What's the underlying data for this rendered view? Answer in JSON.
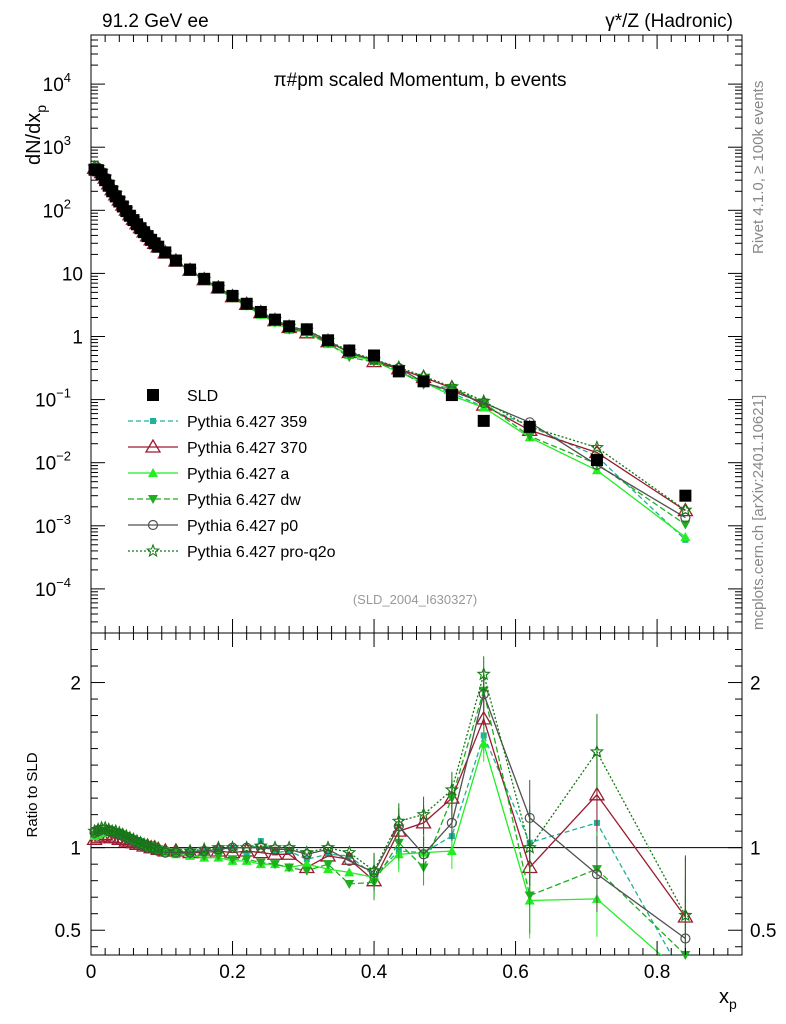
{
  "header": {
    "left_title": "91.2 GeV ee",
    "right_title": "γ*/Z (Hadronic)"
  },
  "side_labels": {
    "rivet": "Rivet 4.1.0, ≥ 100k events",
    "mcplots": "mcplots.cern.ch [arXiv:2401.10621]"
  },
  "chart_data": {
    "type": "line",
    "title": "π#pm scaled Momentum, b events",
    "watermark": "(SLD_2004_I630327)",
    "xlabel": "x_p",
    "ylabel": "dN/dx_p",
    "ratio_ylabel": "Ratio to SLD",
    "xlim": [
      0,
      0.92
    ],
    "ylim_log": [
      2e-05,
      60000
    ],
    "ratio_ylim": [
      0.35,
      2.3
    ],
    "y_ticks": [
      {
        "v": 10000,
        "base": "10",
        "exp": "4"
      },
      {
        "v": 1000,
        "base": "10",
        "exp": "3"
      },
      {
        "v": 100,
        "base": "10",
        "exp": "2"
      },
      {
        "v": 10,
        "base": "10",
        "exp": ""
      },
      {
        "v": 1,
        "base": "1",
        "exp": ""
      },
      {
        "v": 0.1,
        "base": "10",
        "exp": "−1"
      },
      {
        "v": 0.01,
        "base": "10",
        "exp": "−2"
      },
      {
        "v": 0.001,
        "base": "10",
        "exp": "−3"
      },
      {
        "v": 0.0001,
        "base": "10",
        "exp": "−4"
      }
    ],
    "x_ticks": [
      {
        "v": 0,
        "label": "0"
      },
      {
        "v": 0.2,
        "label": "0.2"
      },
      {
        "v": 0.4,
        "label": "0.4"
      },
      {
        "v": 0.6,
        "label": "0.6"
      },
      {
        "v": 0.8,
        "label": "0.8"
      }
    ],
    "ratio_ticks": [
      {
        "v": 0.5,
        "label": "0.5"
      },
      {
        "v": 1,
        "label": "1"
      },
      {
        "v": 2,
        "label": "2"
      }
    ],
    "x": [
      0.005,
      0.01,
      0.015,
      0.02,
      0.025,
      0.03,
      0.035,
      0.04,
      0.045,
      0.05,
      0.055,
      0.06,
      0.065,
      0.07,
      0.075,
      0.08,
      0.085,
      0.09,
      0.095,
      0.105,
      0.12,
      0.14,
      0.16,
      0.18,
      0.2,
      0.22,
      0.24,
      0.26,
      0.28,
      0.305,
      0.335,
      0.365,
      0.4,
      0.435,
      0.47,
      0.51,
      0.555,
      0.62,
      0.715,
      0.84
    ],
    "data_series": {
      "name": "SLD",
      "color": "#000000",
      "values": [
        440,
        430,
        370,
        300,
        245,
        200,
        166,
        138,
        115,
        97,
        82,
        70,
        60,
        52,
        45,
        39,
        34,
        30,
        26.5,
        21.5,
        16,
        11.5,
        8.2,
        6.0,
        4.4,
        3.3,
        2.45,
        1.85,
        1.45,
        1.3,
        0.87,
        0.6,
        0.5,
        0.28,
        0.195,
        0.118,
        0.046,
        0.037,
        0.011,
        0.003
      ]
    },
    "series": [
      {
        "name": "Pythia 6.427 359",
        "color": "#1eb296",
        "dash": "5,3",
        "marker": "square-filled",
        "ratio": [
          1.08,
          1.09,
          1.1,
          1.1,
          1.09,
          1.08,
          1.08,
          1.07,
          1.07,
          1.06,
          1.05,
          1.05,
          1.04,
          1.04,
          1.03,
          1.02,
          1.02,
          1.01,
          1.0,
          0.99,
          0.98,
          0.98,
          0.98,
          0.99,
          1.0,
          0.96,
          1.04,
          0.97,
          0.98,
          0.93,
          0.96,
          0.95,
          0.83,
          0.98,
          0.97,
          1.07,
          1.68,
          1.03,
          1.15,
          0.2
        ]
      },
      {
        "name": "Pythia 6.427 370",
        "color": "#9b1b30",
        "dash": "",
        "marker": "triangle-open",
        "ratio": [
          1.05,
          1.06,
          1.07,
          1.08,
          1.07,
          1.06,
          1.06,
          1.05,
          1.05,
          1.04,
          1.04,
          1.03,
          1.02,
          1.02,
          1.01,
          1.01,
          1.0,
          1.0,
          0.99,
          0.98,
          0.98,
          0.97,
          0.97,
          0.98,
          0.97,
          0.98,
          0.97,
          0.96,
          0.96,
          0.88,
          0.95,
          0.93,
          0.8,
          1.1,
          1.15,
          1.3,
          1.78,
          0.88,
          1.32,
          0.58
        ]
      },
      {
        "name": "Pythia 6.427 a",
        "color": "#22ee22",
        "dash": "",
        "marker": "triangle-filled",
        "ratio": [
          1.07,
          1.08,
          1.09,
          1.1,
          1.1,
          1.1,
          1.09,
          1.09,
          1.08,
          1.07,
          1.06,
          1.05,
          1.04,
          1.03,
          1.02,
          1.01,
          1.0,
          1.0,
          0.99,
          0.97,
          0.96,
          0.95,
          0.94,
          0.94,
          0.92,
          0.92,
          0.9,
          0.9,
          0.88,
          0.9,
          0.87,
          0.85,
          0.82,
          0.96,
          0.97,
          0.98,
          1.63,
          0.68,
          0.69,
          0.22
        ]
      },
      {
        "name": "Pythia 6.427 dw",
        "color": "#1fae1f",
        "dash": "6,3",
        "marker": "triangle-down-filled",
        "ratio": [
          1.08,
          1.09,
          1.1,
          1.1,
          1.09,
          1.09,
          1.08,
          1.08,
          1.07,
          1.06,
          1.05,
          1.05,
          1.04,
          1.03,
          1.02,
          1.01,
          1.01,
          1.0,
          0.99,
          0.98,
          0.97,
          0.96,
          0.95,
          0.95,
          0.93,
          0.93,
          0.91,
          0.9,
          0.88,
          0.86,
          0.9,
          0.78,
          0.79,
          1.03,
          0.88,
          1.3,
          1.95,
          0.71,
          0.87,
          0.35
        ]
      },
      {
        "name": "Pythia 6.427 p0",
        "color": "#505050",
        "dash": "",
        "marker": "circle-open",
        "ratio": [
          1.09,
          1.1,
          1.11,
          1.11,
          1.1,
          1.1,
          1.09,
          1.08,
          1.07,
          1.06,
          1.05,
          1.04,
          1.03,
          1.02,
          1.01,
          1.0,
          1.0,
          0.99,
          0.98,
          0.97,
          0.97,
          0.97,
          0.98,
          0.99,
          1.0,
          1.0,
          1.0,
          0.99,
          0.99,
          0.96,
          0.99,
          0.92,
          0.85,
          1.13,
          0.96,
          1.15,
          1.93,
          1.18,
          0.84,
          0.45
        ]
      },
      {
        "name": "Pythia 6.427 pro-q2o",
        "color": "#127a12",
        "dash": "2,2",
        "marker": "star-open",
        "ratio": [
          1.1,
          1.11,
          1.12,
          1.12,
          1.11,
          1.1,
          1.1,
          1.09,
          1.08,
          1.07,
          1.06,
          1.05,
          1.04,
          1.03,
          1.02,
          1.01,
          1.0,
          1.0,
          0.99,
          0.98,
          0.98,
          0.98,
          0.99,
          1.0,
          1.0,
          1.0,
          1.01,
          1.0,
          1.0,
          0.97,
          1.0,
          0.97,
          0.86,
          1.16,
          1.2,
          1.35,
          2.05,
          1.0,
          1.58,
          0.59
        ]
      }
    ]
  }
}
